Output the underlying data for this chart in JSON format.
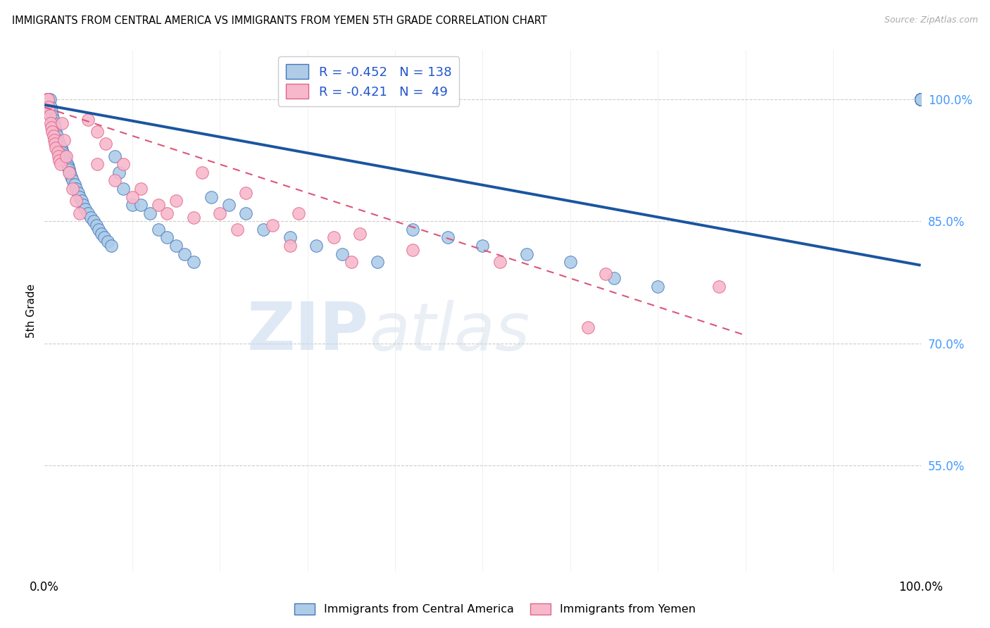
{
  "title": "IMMIGRANTS FROM CENTRAL AMERICA VS IMMIGRANTS FROM YEMEN 5TH GRADE CORRELATION CHART",
  "source": "Source: ZipAtlas.com",
  "ylabel": "5th Grade",
  "legend_blue_r": "-0.452",
  "legend_blue_n": "138",
  "legend_pink_r": "-0.421",
  "legend_pink_n": "49",
  "watermark_zip": "ZIP",
  "watermark_atlas": "atlas",
  "blue_color": "#aecce8",
  "blue_edge_color": "#4477bb",
  "blue_line_color": "#1a55a0",
  "pink_color": "#f8b8cc",
  "pink_edge_color": "#dd6688",
  "pink_line_color": "#dd5577",
  "background_color": "#ffffff",
  "grid_color": "#cccccc",
  "ytick_color": "#4499ff",
  "legend_text_color": "#2255cc",
  "source_color": "#aaaaaa",
  "xlim": [
    0.0,
    1.0
  ],
  "ylim": [
    0.42,
    1.06
  ],
  "y_ticks": [
    1.0,
    0.85,
    0.7,
    0.55
  ],
  "y_tick_labels": [
    "100.0%",
    "85.0%",
    "70.0%",
    "55.0%"
  ],
  "blue_line_x": [
    0.0,
    1.0
  ],
  "blue_line_y": [
    0.993,
    0.796
  ],
  "pink_line_x": [
    0.0,
    0.8
  ],
  "pink_line_y": [
    0.99,
    0.71
  ],
  "blue_x": [
    0.003,
    0.004,
    0.005,
    0.006,
    0.007,
    0.008,
    0.009,
    0.01,
    0.011,
    0.012,
    0.013,
    0.014,
    0.015,
    0.016,
    0.017,
    0.018,
    0.019,
    0.02,
    0.021,
    0.022,
    0.023,
    0.024,
    0.025,
    0.026,
    0.027,
    0.028,
    0.029,
    0.03,
    0.032,
    0.034,
    0.036,
    0.038,
    0.04,
    0.042,
    0.044,
    0.046,
    0.05,
    0.053,
    0.056,
    0.059,
    0.062,
    0.065,
    0.068,
    0.072,
    0.076,
    0.08,
    0.085,
    0.09,
    0.1,
    0.11,
    0.12,
    0.13,
    0.14,
    0.15,
    0.16,
    0.17,
    0.19,
    0.21,
    0.23,
    0.25,
    0.28,
    0.31,
    0.34,
    0.38,
    0.42,
    0.46,
    0.5,
    0.55,
    0.6,
    0.65,
    0.7,
    1.0,
    1.0,
    1.0,
    1.0,
    1.0,
    1.0,
    1.0,
    1.0,
    1.0,
    1.0,
    1.0,
    1.0,
    1.0,
    1.0,
    1.0,
    1.0,
    1.0,
    1.0,
    1.0,
    1.0,
    1.0,
    1.0,
    1.0,
    1.0,
    1.0,
    1.0,
    1.0,
    1.0,
    1.0,
    1.0,
    1.0,
    1.0,
    1.0,
    1.0,
    1.0,
    1.0,
    1.0,
    1.0,
    1.0,
    1.0,
    1.0,
    1.0,
    1.0,
    1.0,
    1.0,
    1.0,
    1.0,
    1.0,
    1.0,
    1.0,
    1.0,
    1.0,
    1.0,
    1.0,
    1.0,
    1.0,
    1.0,
    1.0,
    1.0,
    1.0,
    1.0,
    1.0,
    1.0,
    1.0,
    1.0,
    1.0,
    1.0,
    1.0
  ],
  "blue_y": [
    1.0,
    1.0,
    1.0,
    1.0,
    0.99,
    0.985,
    0.98,
    0.975,
    0.97,
    0.965,
    0.96,
    0.955,
    0.95,
    0.948,
    0.945,
    0.942,
    0.94,
    0.937,
    0.934,
    0.931,
    0.928,
    0.925,
    0.922,
    0.919,
    0.916,
    0.913,
    0.91,
    0.905,
    0.9,
    0.895,
    0.89,
    0.885,
    0.88,
    0.875,
    0.87,
    0.865,
    0.86,
    0.855,
    0.85,
    0.845,
    0.84,
    0.835,
    0.83,
    0.825,
    0.82,
    0.93,
    0.91,
    0.89,
    0.87,
    0.87,
    0.86,
    0.84,
    0.83,
    0.82,
    0.81,
    0.8,
    0.88,
    0.87,
    0.86,
    0.84,
    0.83,
    0.82,
    0.81,
    0.8,
    0.84,
    0.83,
    0.82,
    0.81,
    0.8,
    0.78,
    0.77,
    1.0,
    1.0,
    1.0,
    1.0,
    1.0,
    1.0,
    1.0,
    1.0,
    1.0,
    1.0,
    1.0,
    1.0,
    1.0,
    1.0,
    1.0,
    1.0,
    1.0,
    1.0,
    1.0,
    1.0,
    1.0,
    1.0,
    1.0,
    1.0,
    1.0,
    1.0,
    1.0,
    1.0,
    1.0,
    1.0,
    1.0,
    1.0,
    1.0,
    1.0,
    1.0,
    1.0,
    1.0,
    1.0,
    1.0,
    1.0,
    1.0,
    1.0,
    1.0,
    1.0,
    1.0,
    1.0,
    1.0,
    1.0,
    1.0,
    1.0,
    1.0,
    1.0,
    1.0,
    1.0,
    1.0,
    1.0,
    1.0,
    1.0,
    1.0,
    1.0,
    1.0,
    1.0,
    1.0,
    1.0,
    1.0,
    1.0,
    1.0,
    1.0
  ],
  "pink_x": [
    0.003,
    0.004,
    0.005,
    0.006,
    0.007,
    0.008,
    0.009,
    0.01,
    0.011,
    0.012,
    0.013,
    0.015,
    0.016,
    0.017,
    0.018,
    0.02,
    0.022,
    0.025,
    0.028,
    0.032,
    0.036,
    0.04,
    0.05,
    0.06,
    0.07,
    0.09,
    0.11,
    0.14,
    0.18,
    0.23,
    0.29,
    0.36,
    0.06,
    0.08,
    0.1,
    0.13,
    0.17,
    0.22,
    0.28,
    0.35,
    0.15,
    0.2,
    0.26,
    0.33,
    0.42,
    0.52,
    0.64,
    0.77,
    0.62
  ],
  "pink_y": [
    1.0,
    1.0,
    0.99,
    0.98,
    0.97,
    0.965,
    0.96,
    0.955,
    0.95,
    0.945,
    0.94,
    0.935,
    0.93,
    0.925,
    0.92,
    0.97,
    0.95,
    0.93,
    0.91,
    0.89,
    0.875,
    0.86,
    0.975,
    0.96,
    0.945,
    0.92,
    0.89,
    0.86,
    0.91,
    0.885,
    0.86,
    0.835,
    0.92,
    0.9,
    0.88,
    0.87,
    0.855,
    0.84,
    0.82,
    0.8,
    0.875,
    0.86,
    0.845,
    0.83,
    0.815,
    0.8,
    0.785,
    0.77,
    0.72
  ]
}
